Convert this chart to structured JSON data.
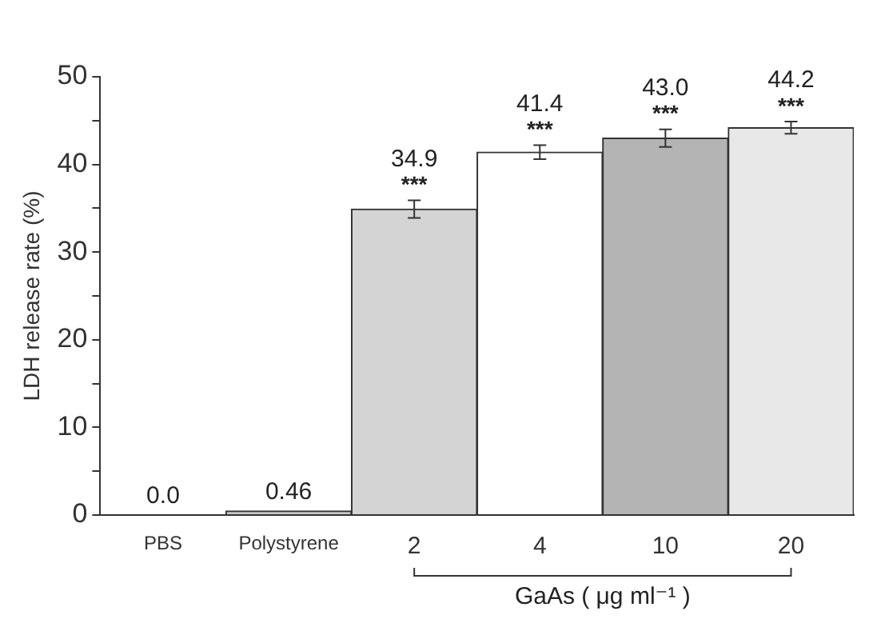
{
  "chart_data": {
    "type": "bar",
    "ylabel": "LDH release rate (%)",
    "xlabel": "GaAs ( μg ml⁻¹ )",
    "categories": [
      "PBS",
      "Polystyrene",
      "2",
      "4",
      "10",
      "20"
    ],
    "values": [
      0,
      0.46,
      34.9,
      41.4,
      43.0,
      44.2
    ],
    "errors": [
      null,
      null,
      1.0,
      0.8,
      1.0,
      0.7
    ],
    "value_labels": [
      "0.0",
      "0.46",
      "34.9",
      "41.4",
      "43.0",
      "44.2"
    ],
    "colors": [
      "#ffffff",
      "#c8c8c8",
      "#d4d4d4",
      "#ffffff",
      "#b4b4b4",
      "#e8e8e8"
    ],
    "ylim": [
      0,
      50
    ],
    "yticks": [
      0,
      {
        "value": 5,
        "label": null
      },
      10,
      {
        "value": 15,
        "label": null
      },
      20,
      {
        "value": 25,
        "label": null
      },
      30,
      {
        "value": 35,
        "label": null
      },
      40,
      {
        "value": 45,
        "label": null
      },
      50
    ],
    "annotations": [
      {
        "text": "***",
        "x": "2",
        "y": 34.9
      },
      {
        "text": "***",
        "x": "4",
        "y": 41.4
      },
      {
        "text": "***",
        "x": "10",
        "y": 43.0
      },
      {
        "text": "***",
        "x": "20",
        "y": 44.2
      }
    ],
    "grid": false,
    "legend": false
  }
}
